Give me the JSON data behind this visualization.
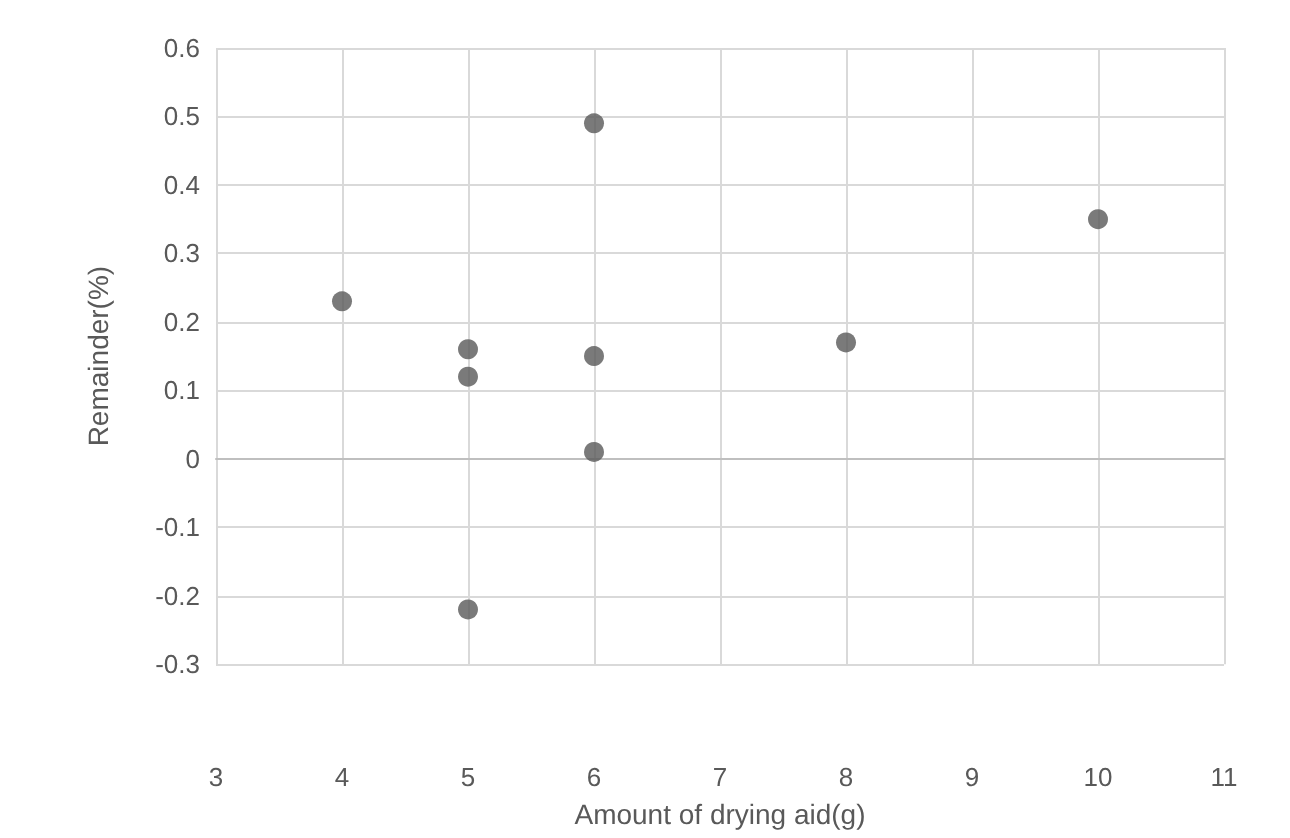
{
  "chart_data": {
    "type": "scatter",
    "xlabel": "Amount of drying aid(g)",
    "ylabel": "Remainder(%)",
    "x": [
      4,
      5,
      5,
      5,
      6,
      6,
      6,
      8,
      10
    ],
    "values": [
      0.23,
      0.16,
      0.12,
      -0.22,
      0.49,
      0.15,
      0.01,
      0.17,
      0.35
    ],
    "color": "#595959",
    "xlim": [
      3,
      11
    ],
    "xticks": [
      3,
      4,
      5,
      6,
      7,
      8,
      9,
      10,
      11
    ],
    "ylim": [
      -0.3,
      0.6
    ],
    "yticks": [
      -0.3,
      -0.2,
      -0.1,
      0,
      0.1,
      0.2,
      0.3,
      0.4,
      0.5,
      0.6
    ],
    "grid": true,
    "marker": "circle"
  }
}
